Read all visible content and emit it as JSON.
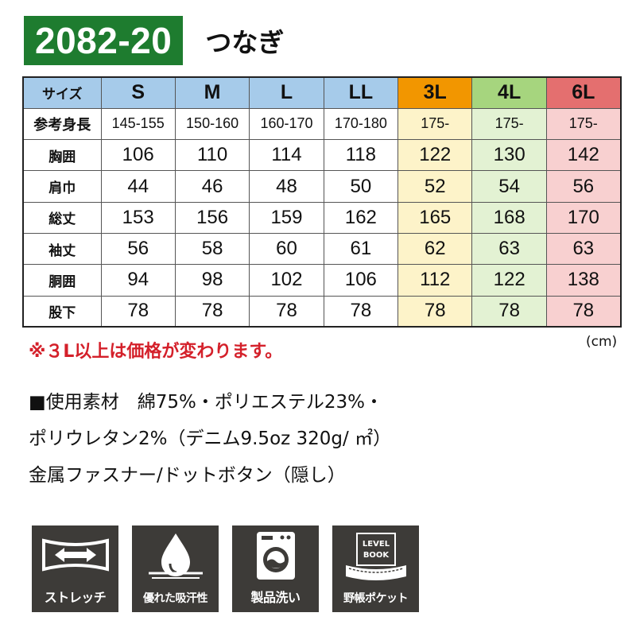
{
  "product": {
    "code": "2082-20",
    "name": "つなぎ"
  },
  "table": {
    "header_label": "サイズ",
    "sizes": [
      "S",
      "M",
      "L",
      "LL",
      "3L",
      "4L",
      "6L"
    ],
    "rows": [
      {
        "label": "参考身長",
        "values": [
          "145-155",
          "150-160",
          "160-170",
          "170-180",
          "175-",
          "175-",
          "175-"
        ]
      },
      {
        "label": "胸囲",
        "values": [
          "106",
          "110",
          "114",
          "118",
          "122",
          "130",
          "142"
        ]
      },
      {
        "label": "肩巾",
        "values": [
          "44",
          "46",
          "48",
          "50",
          "52",
          "54",
          "56"
        ]
      },
      {
        "label": "総丈",
        "values": [
          "153",
          "156",
          "159",
          "162",
          "165",
          "168",
          "170"
        ]
      },
      {
        "label": "袖丈",
        "values": [
          "56",
          "58",
          "60",
          "61",
          "62",
          "63",
          "63"
        ]
      },
      {
        "label": "胴囲",
        "values": [
          "94",
          "98",
          "102",
          "106",
          "112",
          "122",
          "138"
        ]
      },
      {
        "label": "股下",
        "values": [
          "78",
          "78",
          "78",
          "78",
          "78",
          "78",
          "78"
        ]
      }
    ],
    "colors": {
      "standard_header": "#a6cbea",
      "3L_header": "#f29600",
      "4L_header": "#a6d57e",
      "6L_header": "#e46f6f",
      "3L_cell": "#fdf3c9",
      "4L_cell": "#e3f2d3",
      "6L_cell": "#f8d0d0"
    }
  },
  "note": "※３L以上は価格が変わります。",
  "unit": "(cm)",
  "material": {
    "line1": "■使用素材　綿75%・ポリエステル23%・",
    "line2": "ポリウレタン2%（デニム9.5oz 320g/ ㎡）",
    "line3": "金属ファスナー/ドットボタン（隠し）"
  },
  "features": [
    {
      "icon": "stretch-arrows-icon",
      "label": "ストレッチ"
    },
    {
      "icon": "water-drop-icon",
      "label": "優れた吸汗性"
    },
    {
      "icon": "washing-machine-icon",
      "label": "製品洗い"
    },
    {
      "icon": "level-book-icon",
      "label": "野帳ポケット",
      "icon_text_1": "LEVEL",
      "icon_text_2": "BOOK"
    }
  ],
  "brand_color": "#1e7c2f"
}
